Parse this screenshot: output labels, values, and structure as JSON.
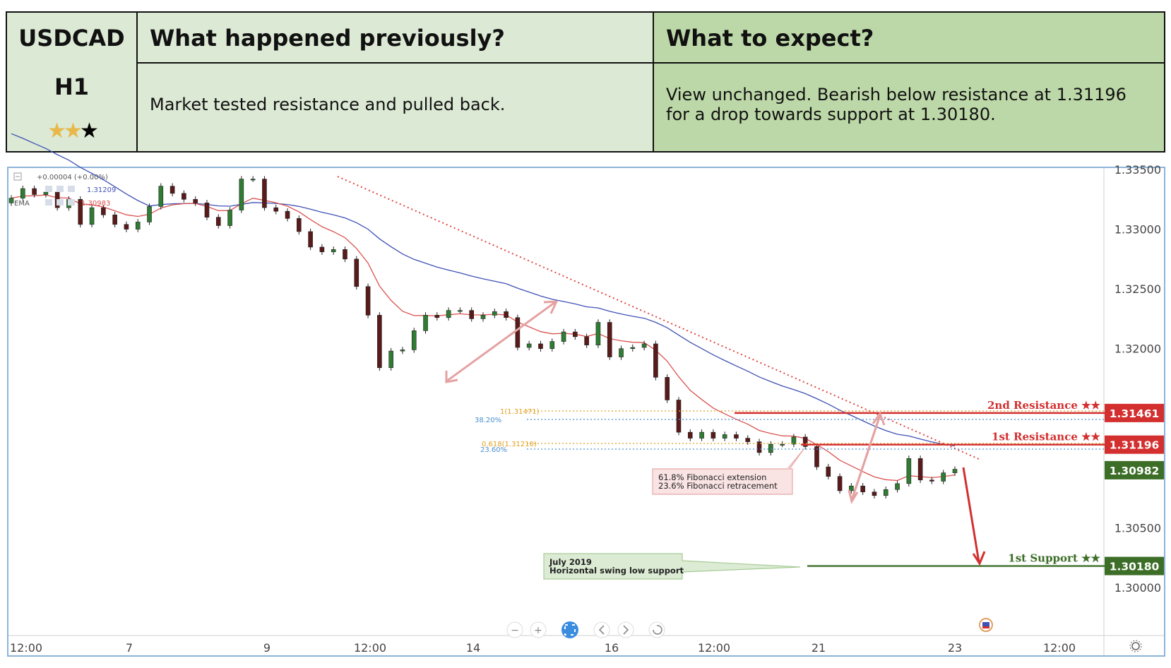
{
  "header": {
    "pair": "USDCAD",
    "timeframe": "H1",
    "stars_filled": "★★",
    "stars_empty": "★",
    "previously_title": "What happened previously?",
    "previously_text": "Market tested resistance and pulled back.",
    "expect_title": "What to expect?",
    "expect_text": "View unchanged. Bearish below resistance at 1.31196 for a drop towards support at 1.30180."
  },
  "chart_data": {
    "type": "line",
    "title": "",
    "xlabel": "",
    "ylabel": "",
    "ylim": [
      1.2975,
      1.3353
    ],
    "y_ticks": [
      "1.33500",
      "1.33000",
      "1.32500",
      "1.32000",
      "1.30500",
      "1.30000"
    ],
    "x_ticks": [
      "12:00",
      "7",
      "9",
      "12:00",
      "14",
      "16",
      "12:00",
      "21",
      "23",
      "12:00"
    ],
    "grid": false,
    "legend": "top-left",
    "indicator_row1": "+0.00004 (+0.00%)",
    "indicator_row2": "1.31209",
    "indicator_row3_label": "EMA",
    "indicator_row3_value": "1.30983",
    "series": [
      {
        "name": "price",
        "color": "#2e7d32",
        "values": [
          1.3326,
          1.3334,
          1.3329,
          1.3331,
          1.3318,
          1.3325,
          1.3304,
          1.3318,
          1.3312,
          1.3304,
          1.33,
          1.3306,
          1.3319,
          1.3336,
          1.333,
          1.3325,
          1.3322,
          1.331,
          1.3303,
          1.3316,
          1.3342,
          1.3342,
          1.3318,
          1.3315,
          1.3309,
          1.3298,
          1.3285,
          1.3281,
          1.3283,
          1.3275,
          1.3252,
          1.3228,
          1.3184,
          1.3198,
          1.3199,
          1.3215,
          1.3228,
          1.3226,
          1.3232,
          1.3232,
          1.3225,
          1.3228,
          1.3231,
          1.3226,
          1.3201,
          1.3204,
          1.32,
          1.3206,
          1.3214,
          1.321,
          1.3203,
          1.3222,
          1.3193,
          1.32,
          1.3201,
          1.3204,
          1.3176,
          1.3157,
          1.313,
          1.3125,
          1.313,
          1.3125,
          1.3128,
          1.3125,
          1.3122,
          1.3113,
          1.312,
          1.312,
          1.3126,
          1.3118,
          1.3101,
          1.3093,
          1.3081,
          1.3085,
          1.308,
          1.3077,
          1.3082,
          1.3087,
          1.3108,
          1.309,
          1.3089,
          1.3096,
          1.3099
        ]
      },
      {
        "name": "EMA",
        "color": "#d9534f"
      },
      {
        "name": "",
        "color": "#3f51b5"
      }
    ],
    "levels": [
      {
        "label": "2nd Resistance ★★",
        "value": 1.31461,
        "value_label": "1.31461",
        "color": "#d32f2f"
      },
      {
        "label": "1st Resistance ★★",
        "value": 1.31196,
        "value_label": "1.31196",
        "color": "#d32f2f"
      },
      {
        "label": "1st Support ★★",
        "value": 1.3018,
        "value_label": "1.30180",
        "color": "#3c6e27"
      }
    ],
    "current_price_label": "1.30982",
    "fibonacci": [
      {
        "label": "1(1.31471)",
        "color": "#e0a020"
      },
      {
        "label": "38.20%",
        "color": "#4a8fd0"
      },
      {
        "label": "0.618(1.31210)",
        "color": "#e0a020"
      },
      {
        "label": "23.60%",
        "color": "#4a8fd0"
      }
    ],
    "annotations": [
      {
        "line1": "61.8% Fibonacci extension",
        "line2": "23.6% Fibonacci retracement"
      },
      {
        "line1": "July 2019",
        "line2": "Horizontal swing low support"
      }
    ]
  }
}
